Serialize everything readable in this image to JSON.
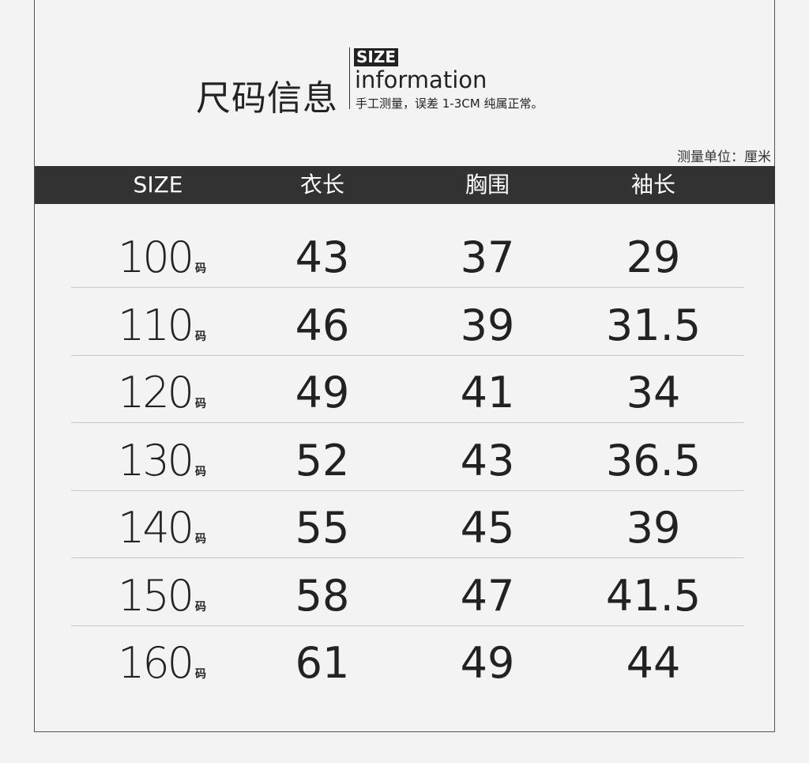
{
  "heading": {
    "title_cn": "尺码信息",
    "size_tag": "SIZE",
    "info": "information",
    "note": "手工测量，误差 1-3CM 纯属正常。",
    "unit": "测量单位：厘米"
  },
  "table": {
    "headers": [
      "SIZE",
      "衣长",
      "胸围",
      "袖长"
    ],
    "size_suffix": "码",
    "rows": [
      {
        "size": "100",
        "length": "43",
        "chest": "37",
        "sleeve": "29"
      },
      {
        "size": "110",
        "length": "46",
        "chest": "39",
        "sleeve": "31.5"
      },
      {
        "size": "120",
        "length": "49",
        "chest": "41",
        "sleeve": "34"
      },
      {
        "size": "130",
        "length": "52",
        "chest": "43",
        "sleeve": "36.5"
      },
      {
        "size": "140",
        "length": "55",
        "chest": "45",
        "sleeve": "39"
      },
      {
        "size": "150",
        "length": "58",
        "chest": "47",
        "sleeve": "41.5"
      },
      {
        "size": "160",
        "length": "61",
        "chest": "49",
        "sleeve": "44"
      }
    ]
  },
  "colors": {
    "header_bg": "#323232",
    "text": "#222222",
    "background": "#f3f3f3"
  }
}
